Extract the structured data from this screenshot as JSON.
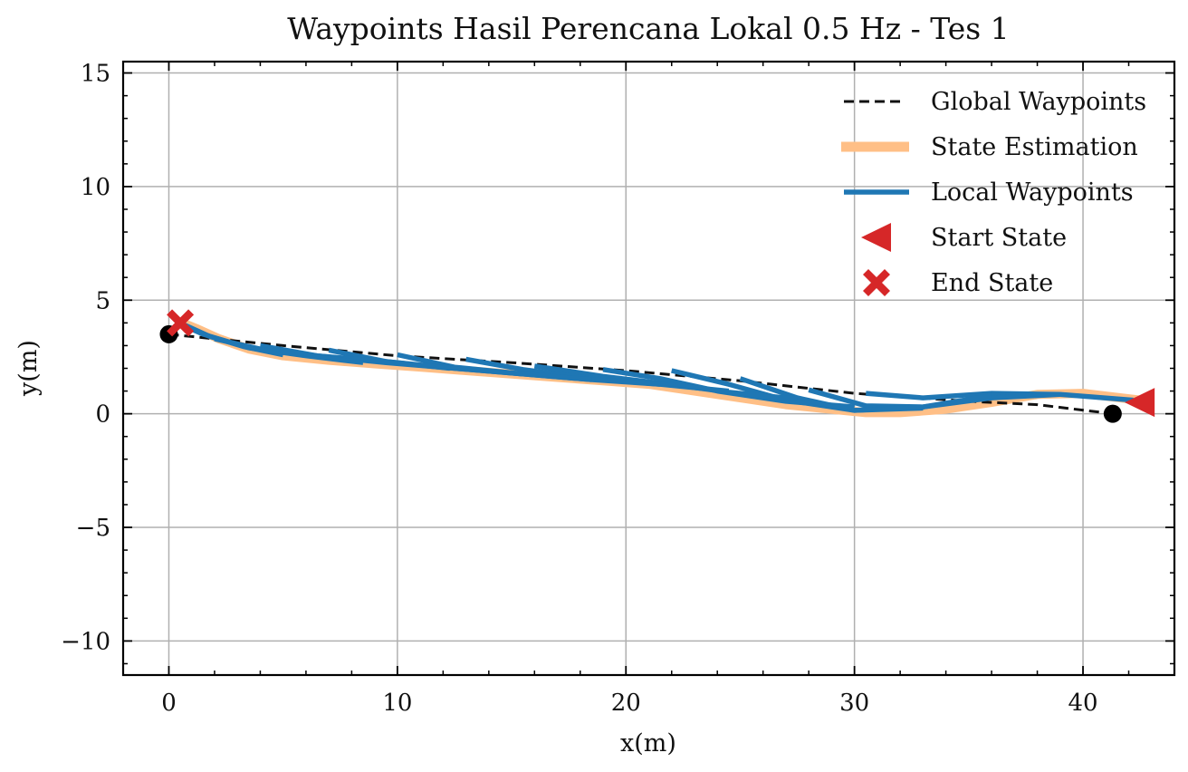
{
  "chart_data": {
    "type": "line",
    "title": "Waypoints Hasil Perencana Lokal 0.5 Hz - Tes 1",
    "xlabel": "x(m)",
    "ylabel": "y(m)",
    "xlim": [
      -2,
      44
    ],
    "ylim": [
      -11.5,
      15.5
    ],
    "xticks": [
      0,
      10,
      20,
      30,
      40
    ],
    "yticks": [
      -10,
      -5,
      0,
      5,
      10,
      15
    ],
    "xtick_labels": [
      "0",
      "10",
      "20",
      "30",
      "40"
    ],
    "ytick_labels": [
      "−10",
      "−5",
      "0",
      "5",
      "10",
      "15"
    ],
    "grid": true,
    "legend_position": "top-right",
    "colors": {
      "global": "#111111",
      "state": "#ffbf86",
      "local": "#1f77b4",
      "markers": "#d62728",
      "grid": "#b0b0b0"
    },
    "legend": [
      {
        "label": "Global Waypoints",
        "style": "dashed-line",
        "color": "#111111"
      },
      {
        "label": "State Estimation",
        "style": "thick-line",
        "color": "#ffbf86"
      },
      {
        "label": "Local Waypoints",
        "style": "line",
        "color": "#1f77b4"
      },
      {
        "label": "Start State",
        "style": "left-triangle",
        "color": "#d62728"
      },
      {
        "label": "End State",
        "style": "x-marker",
        "color": "#d62728"
      }
    ],
    "global_waypoints": {
      "x": [
        0,
        5,
        10,
        15,
        20,
        25,
        30,
        35,
        38,
        41.3
      ],
      "y": [
        3.5,
        3.0,
        2.55,
        2.25,
        1.9,
        1.45,
        0.9,
        0.55,
        0.4,
        0.0
      ]
    },
    "global_endpoints": {
      "x": [
        0,
        41.3
      ],
      "y": [
        3.5,
        0.0
      ]
    },
    "state_estimation": {
      "x": [
        42.5,
        40,
        38,
        36,
        34,
        32,
        30.5,
        29,
        27,
        25,
        23,
        21,
        19,
        17,
        15,
        13,
        11,
        9,
        7,
        5,
        3.5,
        2.2,
        1.2,
        0.6
      ],
      "y": [
        0.6,
        0.9,
        0.85,
        0.5,
        0.2,
        0.05,
        0.05,
        0.2,
        0.4,
        0.7,
        1.0,
        1.3,
        1.45,
        1.6,
        1.75,
        1.9,
        2.05,
        2.2,
        2.35,
        2.55,
        2.85,
        3.3,
        3.75,
        4.0
      ]
    },
    "local_waypoints": [
      {
        "x": [
          42.2,
          39,
          36,
          33,
          30.5
        ],
        "y": [
          0.6,
          0.85,
          0.9,
          0.7,
          0.9
        ]
      },
      {
        "x": [
          39,
          36,
          33,
          30.5,
          28
        ],
        "y": [
          0.85,
          0.7,
          0.3,
          0.35,
          1.05
        ]
      },
      {
        "x": [
          36,
          33,
          30,
          27.5,
          25
        ],
        "y": [
          0.8,
          0.3,
          0.15,
          0.7,
          1.55
        ]
      },
      {
        "x": [
          33,
          30,
          27,
          24.5,
          22
        ],
        "y": [
          0.25,
          0.15,
          0.6,
          1.3,
          1.9
        ]
      },
      {
        "x": [
          30,
          27,
          24,
          21.5,
          19
        ],
        "y": [
          0.3,
          0.55,
          1.0,
          1.55,
          1.95
        ]
      },
      {
        "x": [
          27.5,
          24.5,
          21.5,
          19,
          16
        ],
        "y": [
          0.65,
          0.95,
          1.35,
          1.65,
          2.1
        ]
      },
      {
        "x": [
          24.5,
          21.5,
          18.5,
          15.5,
          13
        ],
        "y": [
          1.0,
          1.3,
          1.55,
          1.95,
          2.4
        ]
      },
      {
        "x": [
          21.5,
          18.5,
          15.5,
          12.5,
          10
        ],
        "y": [
          1.3,
          1.5,
          1.75,
          2.05,
          2.6
        ]
      },
      {
        "x": [
          18.5,
          15.5,
          12.5,
          9.5,
          7
        ],
        "y": [
          1.5,
          1.75,
          2.0,
          2.3,
          2.8
        ]
      },
      {
        "x": [
          15.5,
          12.5,
          9.5,
          6.5,
          4
        ],
        "y": [
          1.75,
          2.0,
          2.25,
          2.55,
          3.0
        ]
      },
      {
        "x": [
          12.3,
          9.5,
          6.5,
          4,
          2
        ],
        "y": [
          2.0,
          2.3,
          2.55,
          2.85,
          3.3
        ]
      },
      {
        "x": [
          8.5,
          6,
          3.5,
          1.5,
          0.6
        ],
        "y": [
          2.25,
          2.55,
          2.9,
          3.5,
          3.9
        ]
      },
      {
        "x": [
          5,
          3.3,
          1.8,
          0.6
        ],
        "y": [
          2.6,
          2.95,
          3.4,
          3.95
        ]
      }
    ],
    "start_state": {
      "x": 42.5,
      "y": 0.5
    },
    "end_state": {
      "x": 0.5,
      "y": 4.0
    }
  }
}
